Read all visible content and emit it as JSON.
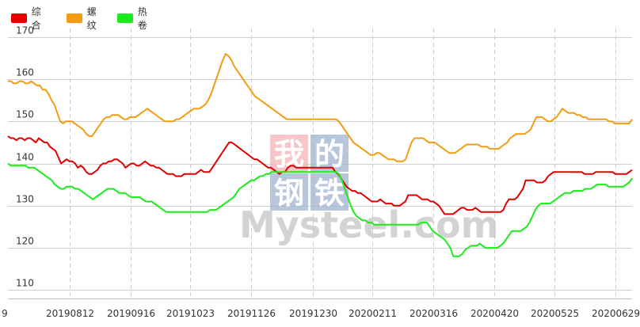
{
  "chart_data": {
    "type": "line",
    "title": "",
    "xlabel": "",
    "ylabel": "",
    "ylim": [
      108,
      172
    ],
    "y_ticks": [
      110,
      120,
      130,
      140,
      150,
      160,
      170
    ],
    "x_tick_labels": [
      "9",
      "20190812",
      "20190916",
      "20191023",
      "20191126",
      "20191230",
      "20200211",
      "20200316",
      "20200420",
      "20200525",
      "20200629"
    ],
    "grid": {
      "horizontal": true,
      "vertical": "dashed"
    },
    "legend_position": "top-left",
    "watermark": {
      "chars": [
        "我",
        "的",
        "钢",
        "铁"
      ],
      "text": "Mysteel.com"
    },
    "series": [
      {
        "name": "综合",
        "color": "#e00000",
        "values": [
          146.5,
          146,
          146,
          145.5,
          146,
          146,
          145.5,
          146,
          146,
          145.5,
          145,
          146,
          145.5,
          145,
          145,
          144,
          143.5,
          143,
          141.5,
          140,
          140.5,
          141,
          140.5,
          140.5,
          140,
          139,
          139.5,
          139,
          138,
          137.5,
          137.5,
          138,
          138.5,
          139.5,
          140,
          140,
          140.5,
          140.5,
          141,
          141,
          140.5,
          140,
          139,
          139.5,
          140,
          140,
          139.5,
          139.5,
          140,
          140.5,
          140,
          139.5,
          139.5,
          139,
          139,
          138.5,
          138,
          137.5,
          137.5,
          137.5,
          137,
          137,
          137,
          137.5,
          137.5,
          137.5,
          137.5,
          137.5,
          138,
          138.5,
          138,
          138,
          138,
          139,
          140,
          141,
          142,
          143,
          144,
          145,
          145,
          144.5,
          144,
          143.5,
          143,
          142.5,
          142,
          141.5,
          141,
          141,
          140.5,
          140,
          139.5,
          139,
          139,
          138.5,
          138,
          137.5,
          138,
          138,
          139,
          139.5,
          139.5,
          139,
          139,
          139,
          139,
          139,
          139,
          139,
          139,
          139,
          139,
          139,
          139,
          139,
          139,
          138,
          137.5,
          136.5,
          135.5,
          134.5,
          134,
          133.5,
          133.5,
          133,
          133,
          132.5,
          132,
          131.5,
          131,
          131,
          131,
          131.5,
          131,
          130.5,
          130.5,
          130.5,
          130,
          130,
          130,
          130.5,
          131,
          132.5,
          132.5,
          132.5,
          132.5,
          132,
          131.5,
          131.5,
          131.5,
          131,
          131,
          130.5,
          130,
          129,
          128,
          128,
          128,
          128,
          128.5,
          129,
          129.5,
          129.5,
          129,
          129,
          129,
          129.5,
          129,
          128.5,
          128.5,
          128.5,
          128.5,
          128.5,
          128.5,
          128.5,
          128.5,
          129,
          130.5,
          131.5,
          131.5,
          131.5,
          132,
          133,
          134,
          136,
          136,
          136,
          136,
          135.5,
          135.5,
          135.5,
          136,
          137,
          137.5,
          138,
          138,
          138,
          138,
          138,
          138,
          138,
          138,
          138,
          138,
          138,
          137.5,
          137.5,
          137.5,
          137.5,
          138,
          138,
          138,
          138,
          138,
          138,
          138,
          137.5,
          137.5,
          137.5,
          137.5,
          137.5,
          138,
          138.5
        ]
      },
      {
        "name": "螺纹",
        "color": "#f39c12",
        "values": [
          159.5,
          159.5,
          159,
          159,
          159.5,
          159.5,
          159,
          159,
          159.5,
          159,
          158.5,
          158.5,
          157.5,
          157.5,
          156.5,
          155,
          154,
          152,
          150,
          149.5,
          150,
          150,
          150,
          149.5,
          149,
          148.5,
          148,
          147,
          146.5,
          146.5,
          147.5,
          148.5,
          149.5,
          150.5,
          151,
          151,
          151.5,
          151.5,
          151.5,
          151,
          150.5,
          150.5,
          151,
          151,
          151,
          151.5,
          152,
          152.5,
          153,
          152.5,
          152,
          151.5,
          151,
          150.5,
          150,
          150,
          150,
          150,
          150.5,
          150.5,
          151,
          151.5,
          152,
          152.5,
          153,
          153,
          153,
          153.5,
          154,
          155,
          156.5,
          158.5,
          160.5,
          162.5,
          164.5,
          166,
          165.5,
          164.5,
          163,
          162,
          161,
          160,
          159,
          158,
          157,
          156,
          155.5,
          155,
          154.5,
          154,
          153.5,
          153,
          152.5,
          152,
          151.5,
          151,
          150.5,
          150.5,
          150.5,
          150.5,
          150.5,
          150.5,
          150.5,
          150.5,
          150.5,
          150.5,
          150.5,
          150.5,
          150.5,
          150.5,
          150.5,
          150.5,
          150.5,
          150.5,
          150,
          149,
          148,
          147,
          146,
          145,
          144.5,
          144,
          143.5,
          143,
          142.5,
          142,
          142,
          142.5,
          142.5,
          142,
          141.5,
          141,
          141,
          141,
          140.5,
          140.5,
          140.5,
          141,
          143,
          145,
          146,
          146,
          146,
          146,
          145.5,
          145,
          145,
          145,
          144.5,
          144,
          143.5,
          143,
          142.5,
          142.5,
          142.5,
          143,
          143.5,
          144,
          144.5,
          144.5,
          144.5,
          144.5,
          144.5,
          144,
          144,
          144,
          143.5,
          143.5,
          143.5,
          143.5,
          144,
          144.5,
          145,
          146,
          146.5,
          147,
          147,
          147,
          147,
          147.5,
          148,
          149.5,
          151,
          151,
          151,
          150.5,
          150,
          150,
          150.5,
          151,
          152,
          153,
          152.5,
          152,
          152,
          152,
          151.5,
          151.5,
          151,
          151,
          150.5,
          150.5,
          150.5,
          150.5,
          150.5,
          150.5,
          150.5,
          150,
          150,
          149.5,
          149.5,
          149.5,
          149.5,
          149.5,
          149.5,
          150.5
        ]
      },
      {
        "name": "热卷",
        "color": "#1aeb1a",
        "values": [
          140,
          139.5,
          139.5,
          139.5,
          139.5,
          139.5,
          139.5,
          139,
          139,
          139,
          138.5,
          138,
          137.5,
          137,
          136.5,
          136,
          135,
          134.5,
          134,
          134,
          134.5,
          134.5,
          134.5,
          134,
          134,
          133.5,
          133,
          132.5,
          132,
          131.5,
          132,
          132.5,
          133,
          133.5,
          134,
          134,
          134,
          133.5,
          133,
          133,
          133,
          132.5,
          132,
          132,
          132,
          132,
          131.5,
          131,
          131,
          131,
          130.5,
          130,
          129.5,
          129,
          128.5,
          128.5,
          128.5,
          128.5,
          128.5,
          128.5,
          128.5,
          128.5,
          128.5,
          128.5,
          128.5,
          128.5,
          128.5,
          128.5,
          128.5,
          129,
          129,
          129,
          129.5,
          130,
          130.5,
          131,
          131.5,
          132,
          133,
          134,
          134.5,
          135,
          135.5,
          136,
          136,
          136.5,
          137,
          137,
          137.5,
          137.5,
          138,
          138,
          138,
          138,
          138,
          138,
          138,
          138,
          138,
          138,
          138,
          138,
          138,
          138,
          138,
          138,
          138,
          138,
          138,
          138,
          138,
          138,
          138,
          137.5,
          136,
          134,
          132,
          130,
          128.5,
          127.5,
          127,
          126.5,
          126.5,
          126,
          126,
          125.5,
          125.5,
          125.5,
          125.5,
          125.5,
          125.5,
          125.5,
          125.5,
          125.5,
          125.5,
          125.5,
          125.5,
          125.5,
          125.5,
          125.5,
          125.5,
          126,
          126,
          126,
          125,
          124,
          123.5,
          123,
          122.5,
          122,
          121,
          120,
          118,
          118,
          118,
          118.5,
          119.5,
          120,
          120.5,
          120.5,
          120.5,
          121,
          120.5,
          120,
          120,
          120,
          120,
          120,
          120.5,
          121,
          122,
          123,
          124,
          124,
          124,
          124,
          124.5,
          125,
          126,
          127.5,
          129,
          130,
          130.5,
          130.5,
          130.5,
          130.5,
          131,
          131.5,
          132,
          132.5,
          133,
          133,
          133,
          133.5,
          133.5,
          133.5,
          133.5,
          134,
          134,
          134,
          134.5,
          135,
          135,
          135,
          135,
          134.5,
          134.5,
          134.5,
          134.5,
          134.5,
          134.5,
          135,
          135.5,
          136.5
        ]
      }
    ]
  }
}
